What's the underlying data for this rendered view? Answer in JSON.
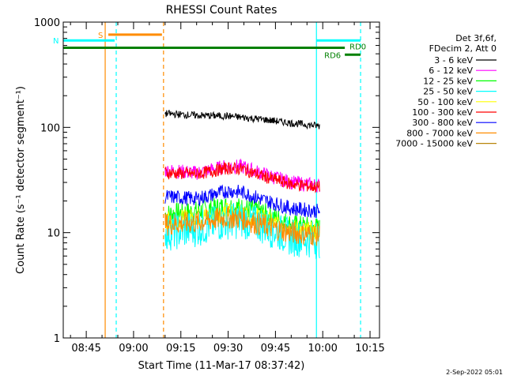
{
  "chart_data": {
    "type": "line",
    "title": "RHESSI Count Rates",
    "xlabel": "Start Time (11-Mar-17 08:37:42)",
    "ylabel": "Count Rate (s⁻¹ detector segment⁻¹)",
    "y_scale": "log",
    "ylim": [
      1,
      1000
    ],
    "xlim": [
      "08:37:42",
      "10:18:00"
    ],
    "y_ticks": [
      "1",
      "10",
      "100",
      "1000"
    ],
    "x_ticks": [
      "08:45",
      "09:00",
      "09:15",
      "09:30",
      "09:45",
      "10:00",
      "10:15"
    ],
    "legend_header": [
      "Det 3f,6f,",
      "FDecim 2, Att 0"
    ],
    "legend_position": "right",
    "timestamp": "2-Sep-2022 05:01",
    "colors": {
      "3-6": "#000000",
      "6-12": "#ff00ff",
      "12-25": "#00ff00",
      "25-50": "#00ffff",
      "50-100": "#ffff00",
      "100-300": "#ff0000",
      "300-800": "#0000ff",
      "800-7000": "#ff8c00",
      "7000-15000": "#b8860b"
    },
    "series": [
      {
        "name": "3 - 6 keV",
        "color": "#000000",
        "x": [
          "09:10",
          "09:20",
          "09:30",
          "09:40",
          "09:50",
          "09:59"
        ],
        "values": [
          135,
          130,
          128,
          120,
          110,
          103
        ]
      },
      {
        "name": "6 - 12 keV",
        "color": "#ff00ff",
        "x": [
          "09:10",
          "09:20",
          "09:30",
          "09:35",
          "09:40",
          "09:50",
          "09:59"
        ],
        "values": [
          39,
          37,
          43,
          42,
          37,
          30,
          28
        ]
      },
      {
        "name": "12 - 25 keV",
        "color": "#00ff00",
        "x": [
          "09:10",
          "09:20",
          "09:30",
          "09:35",
          "09:40",
          "09:50",
          "09:59"
        ],
        "values": [
          15,
          16,
          18,
          17,
          16,
          12,
          11
        ]
      },
      {
        "name": "25 - 50 keV",
        "color": "#00ffff",
        "x": [
          "09:10",
          "09:20",
          "09:30",
          "09:35",
          "09:40",
          "09:50",
          "09:59"
        ],
        "values": [
          10,
          11,
          13,
          13,
          12,
          9,
          8.5
        ]
      },
      {
        "name": "50 - 100 keV",
        "color": "#ffff00",
        "x": [
          "09:10",
          "09:20",
          "09:30",
          "09:35",
          "09:40",
          "09:50",
          "09:59"
        ],
        "values": [
          13,
          14,
          16,
          15,
          14,
          11,
          10
        ]
      },
      {
        "name": "100 - 300 keV",
        "color": "#ff0000",
        "x": [
          "09:10",
          "09:20",
          "09:30",
          "09:35",
          "09:40",
          "09:50",
          "09:59"
        ],
        "values": [
          37,
          36,
          41,
          40,
          35,
          29,
          27
        ]
      },
      {
        "name": "300 - 800 keV",
        "color": "#0000ff",
        "x": [
          "09:10",
          "09:20",
          "09:30",
          "09:35",
          "09:40",
          "09:50",
          "09:59"
        ],
        "values": [
          22,
          21,
          25,
          24,
          21,
          17,
          16
        ]
      },
      {
        "name": "800 - 7000 keV",
        "color": "#ff8c00",
        "x": [
          "09:10",
          "09:20",
          "09:30",
          "09:35",
          "09:40",
          "09:50",
          "09:59"
        ],
        "values": [
          12,
          12.5,
          14,
          13.5,
          12,
          10,
          9.5
        ]
      },
      {
        "name": "7000 - 15000 keV",
        "color": "#b8860b",
        "x": [],
        "values": []
      }
    ],
    "flag_bars": [
      {
        "label": "S",
        "color": "#ff8c00",
        "x_start": "08:52",
        "x_end": "09:09",
        "y_level": 760
      },
      {
        "label": "N",
        "color": "#00ffff",
        "x_start": "08:37:42",
        "x_end": "08:54",
        "y_level": 670
      },
      {
        "label": "",
        "color": "#00ffff",
        "x_start": "09:58",
        "x_end": "10:12",
        "y_level": 670
      },
      {
        "label": "",
        "color": "#008000",
        "x_start": "08:37:42",
        "x_end": "10:07",
        "y_level": 570
      },
      {
        "label": "RD0",
        "color": "#008000",
        "x_start": "10:07",
        "x_end": "10:07",
        "y_level": 570
      },
      {
        "label": "RD6",
        "color": "#008000",
        "x_start": "10:07",
        "x_end": "10:12",
        "y_level": 490
      }
    ],
    "vertical_lines": [
      {
        "x": "08:51",
        "color": "#ff8c00",
        "style": "solid"
      },
      {
        "x": "08:54:30",
        "color": "#00ffff",
        "style": "dashed"
      },
      {
        "x": "09:09:30",
        "color": "#ff8c00",
        "style": "dashed"
      },
      {
        "x": "09:58",
        "color": "#00ffff",
        "style": "solid"
      },
      {
        "x": "10:12",
        "color": "#00ffff",
        "style": "dashed"
      }
    ]
  }
}
